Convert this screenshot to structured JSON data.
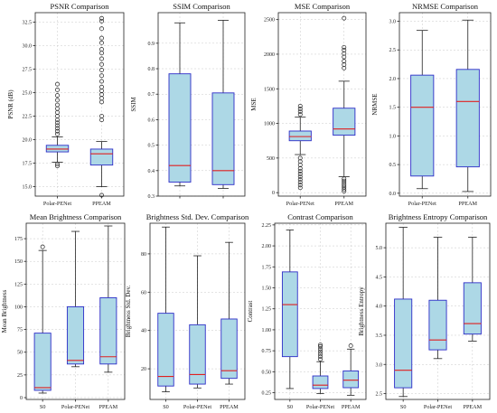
{
  "chart_data": [
    {
      "type": "box",
      "title": "PSNR Comparison",
      "ylabel": "PSNR (dB)",
      "ylim": [
        14,
        33.5
      ],
      "yticks": [
        15.0,
        17.5,
        20.0,
        22.5,
        25.0,
        27.5,
        30.0,
        32.5
      ],
      "tick_decimals": 1,
      "categories": [
        "Polar-PENet",
        "PPEAM"
      ],
      "boxes": [
        {
          "whislo": 17.6,
          "q1": 18.7,
          "med": 19.0,
          "q3": 19.4,
          "whishi": 20.3,
          "fliers": [
            17.2,
            17.4,
            20.6,
            20.9,
            21.2,
            21.5,
            21.8,
            22.1,
            22.5,
            22.9,
            23.3,
            23.7,
            24.2,
            24.7,
            25.3,
            25.9
          ]
        },
        {
          "whislo": 15.0,
          "q1": 17.3,
          "med": 18.5,
          "q3": 19.0,
          "whishi": 19.8,
          "fliers": [
            14.1,
            22.1,
            22.5,
            24.0,
            24.4,
            24.8,
            25.2,
            25.6,
            26.2,
            26.8,
            27.4,
            28.0,
            28.6,
            29.2,
            29.6,
            30.3,
            30.8,
            31.8,
            32.6,
            32.9
          ]
        }
      ]
    },
    {
      "type": "box",
      "title": "SSIM Comparison",
      "ylabel": "SSIM",
      "ylim": [
        0.3,
        1.02
      ],
      "yticks": [
        0.3,
        0.4,
        0.5,
        0.6,
        0.7,
        0.8,
        0.9
      ],
      "tick_decimals": 1,
      "categories": [
        "",
        ""
      ],
      "boxes": [
        {
          "whislo": 0.34,
          "q1": 0.355,
          "med": 0.42,
          "q3": 0.78,
          "whishi": 0.98,
          "fliers": []
        },
        {
          "whislo": 0.33,
          "q1": 0.345,
          "med": 0.4,
          "q3": 0.705,
          "whishi": 0.99,
          "fliers": []
        }
      ]
    },
    {
      "type": "box",
      "title": "MSE Comparison",
      "ylabel": "MSE",
      "ylim": [
        -50,
        2600
      ],
      "yticks": [
        0,
        500,
        1000,
        1500,
        2000,
        2500
      ],
      "tick_decimals": 0,
      "categories": [
        "Polar-PENet",
        "PPEAM"
      ],
      "boxes": [
        {
          "whislo": 550,
          "q1": 750,
          "med": 810,
          "q3": 890,
          "whishi": 1090,
          "fliers": [
            70,
            110,
            150,
            190,
            230,
            270,
            310,
            350,
            400,
            450,
            500,
            1130,
            1170,
            1210,
            1250
          ]
        },
        {
          "whislo": 230,
          "q1": 830,
          "med": 920,
          "q3": 1220,
          "whishi": 1610,
          "fliers": [
            20,
            50,
            80,
            110,
            140,
            170,
            200,
            1800,
            1850,
            1900,
            1960,
            2010,
            2060,
            2100,
            2520
          ]
        }
      ]
    },
    {
      "type": "box",
      "title": "NRMSE Comparison",
      "ylabel": "NRMSE",
      "ylim": [
        -0.05,
        3.15
      ],
      "yticks": [
        0.0,
        0.5,
        1.0,
        1.5,
        2.0,
        2.5,
        3.0
      ],
      "tick_decimals": 1,
      "categories": [
        "Polar-PENet",
        "PPEAM"
      ],
      "boxes": [
        {
          "whislo": 0.08,
          "q1": 0.3,
          "med": 1.5,
          "q3": 2.06,
          "whishi": 2.84,
          "fliers": []
        },
        {
          "whislo": 0.03,
          "q1": 0.46,
          "med": 1.6,
          "q3": 2.16,
          "whishi": 3.02,
          "fliers": []
        }
      ]
    },
    {
      "type": "box",
      "title": "Mean Brightness Comparison",
      "ylabel": "Mean Brightness",
      "ylim": [
        -2,
        192
      ],
      "yticks": [
        0,
        25,
        50,
        75,
        100,
        125,
        150,
        175
      ],
      "tick_decimals": 0,
      "categories": [
        "S0",
        "Polar-PENet",
        "PPEAM"
      ],
      "boxes": [
        {
          "whislo": 5,
          "q1": 8,
          "med": 11,
          "q3": 71,
          "whishi": 162,
          "fliers": [
            166
          ]
        },
        {
          "whislo": 34,
          "q1": 37,
          "med": 41,
          "q3": 100,
          "whishi": 183,
          "fliers": []
        },
        {
          "whislo": 28,
          "q1": 37,
          "med": 45,
          "q3": 110,
          "whishi": 189,
          "fliers": []
        }
      ]
    },
    {
      "type": "box",
      "title": "Brightness Std. Dev. Comparison",
      "ylabel": "Brightness Std. Dev.",
      "ylim": [
        4,
        96
      ],
      "yticks": [
        20,
        40,
        60,
        80
      ],
      "tick_decimals": 0,
      "categories": [
        "S0",
        "Polar-PENet",
        "PPEAM"
      ],
      "boxes": [
        {
          "whislo": 8,
          "q1": 11,
          "med": 16,
          "q3": 49,
          "whishi": 94,
          "fliers": []
        },
        {
          "whislo": 10,
          "q1": 12,
          "med": 17,
          "q3": 43,
          "whishi": 79,
          "fliers": []
        },
        {
          "whislo": 12,
          "q1": 15,
          "med": 19,
          "q3": 46,
          "whishi": 86,
          "fliers": []
        }
      ]
    },
    {
      "type": "box",
      "title": "Contrast Comparison",
      "ylabel": "Contrast",
      "ylim": [
        0.17,
        2.27
      ],
      "yticks": [
        0.25,
        0.5,
        0.75,
        1.0,
        1.25,
        1.5,
        1.75,
        2.0,
        2.25
      ],
      "tick_decimals": 2,
      "categories": [
        "S0",
        "Polar-PENet",
        "PPEAM"
      ],
      "boxes": [
        {
          "whislo": 0.3,
          "q1": 0.68,
          "med": 1.3,
          "q3": 1.69,
          "whishi": 2.19,
          "fliers": []
        },
        {
          "whislo": 0.24,
          "q1": 0.3,
          "med": 0.34,
          "q3": 0.45,
          "whishi": 0.62,
          "fliers": [
            0.65,
            0.68,
            0.71,
            0.74,
            0.77,
            0.8,
            0.82
          ]
        },
        {
          "whislo": 0.22,
          "q1": 0.31,
          "med": 0.4,
          "q3": 0.51,
          "whishi": 0.77,
          "fliers": [
            0.81
          ]
        }
      ]
    },
    {
      "type": "box",
      "title": "Brightness Entropy Comparison",
      "ylabel": "Brightness Entropy",
      "ylim": [
        2.4,
        5.42
      ],
      "yticks": [
        2.5,
        3.0,
        3.5,
        4.0,
        4.5,
        5.0
      ],
      "tick_decimals": 1,
      "categories": [
        "S0",
        "Polar-PENet",
        "PPEAM"
      ],
      "boxes": [
        {
          "whislo": 2.45,
          "q1": 2.6,
          "med": 2.9,
          "q3": 4.12,
          "whishi": 5.35,
          "fliers": []
        },
        {
          "whislo": 3.1,
          "q1": 3.25,
          "med": 3.42,
          "q3": 4.1,
          "whishi": 5.18,
          "fliers": []
        },
        {
          "whislo": 3.4,
          "q1": 3.52,
          "med": 3.7,
          "q3": 4.4,
          "whishi": 5.18,
          "fliers": []
        }
      ]
    }
  ]
}
